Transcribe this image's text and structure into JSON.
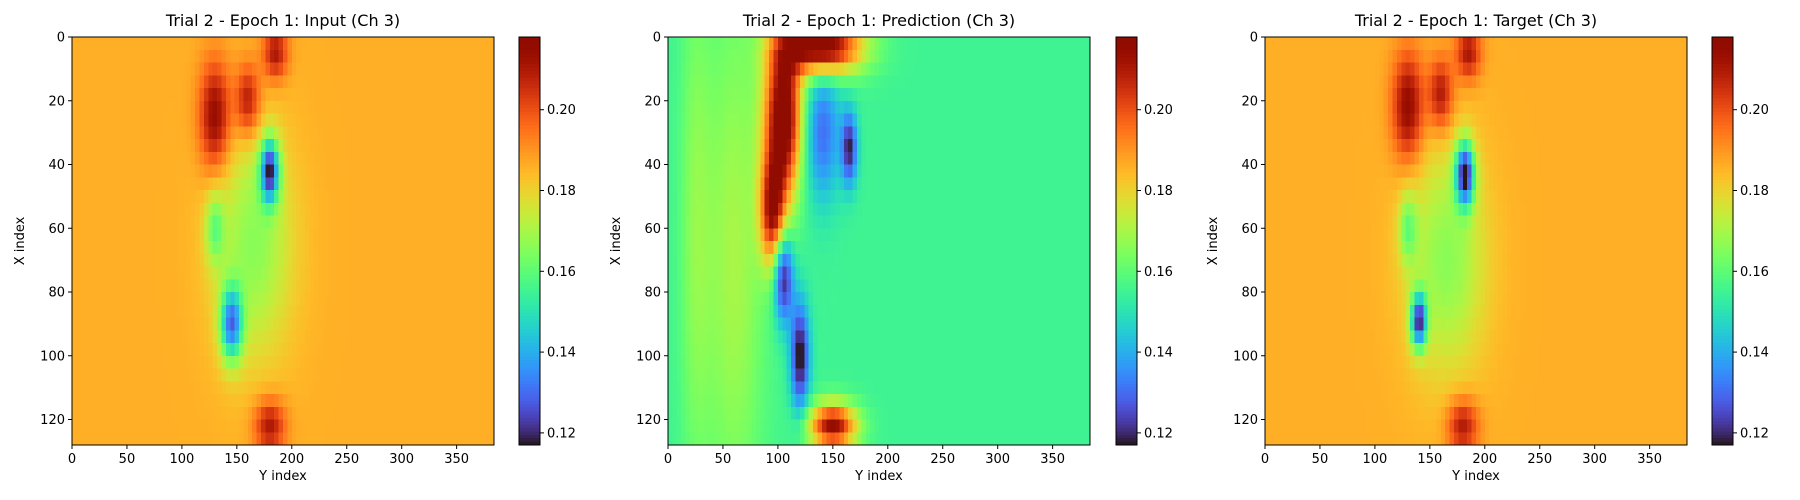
{
  "chart_data": [
    {
      "type": "heatmap",
      "title": "Trial 2 - Epoch 1: Input (Ch 3)",
      "xlabel": "Y index",
      "ylabel": "X index",
      "xlim": [
        0,
        384
      ],
      "ylim": [
        128,
        0
      ],
      "xticks": [
        "0",
        "50",
        "100",
        "150",
        "200",
        "250",
        "300",
        "350"
      ],
      "yticks": [
        "0",
        "20",
        "40",
        "60",
        "80",
        "100",
        "120"
      ],
      "colorbar": {
        "range": [
          0.117,
          0.218
        ],
        "ticks": [
          "0.12",
          "0.14",
          "0.16",
          "0.18",
          "0.20"
        ],
        "colormap": "turbo"
      },
      "field": {
        "background": 0.186,
        "features": [
          {
            "x": 130,
            "y": 25,
            "sx": 10,
            "sy": 12,
            "amp": 0.03
          },
          {
            "x": 160,
            "y": 20,
            "sx": 8,
            "sy": 8,
            "amp": 0.025
          },
          {
            "x": 185,
            "y": 5,
            "sx": 8,
            "sy": 6,
            "amp": 0.025
          },
          {
            "x": 180,
            "y": 122,
            "sx": 10,
            "sy": 6,
            "amp": 0.025
          },
          {
            "x": 180,
            "y": 42,
            "sx": 6,
            "sy": 7,
            "amp": -0.06
          },
          {
            "x": 145,
            "y": 90,
            "sx": 7,
            "sy": 8,
            "amp": -0.05
          },
          {
            "x": 165,
            "y": 65,
            "sx": 25,
            "sy": 25,
            "amp": -0.02
          },
          {
            "x": 130,
            "y": 60,
            "sx": 6,
            "sy": 8,
            "amp": -0.02
          }
        ]
      }
    },
    {
      "type": "heatmap",
      "title": "Trial 2 - Epoch 1: Prediction (Ch 3)",
      "xlabel": "Y index",
      "ylabel": "X index",
      "xlim": [
        0,
        384
      ],
      "ylim": [
        128,
        0
      ],
      "xticks": [
        "0",
        "50",
        "100",
        "150",
        "200",
        "250",
        "300",
        "350"
      ],
      "yticks": [
        "0",
        "20",
        "40",
        "60",
        "80",
        "100",
        "120"
      ],
      "colorbar": {
        "range": [
          0.117,
          0.218
        ],
        "ticks": [
          "0.12",
          "0.14",
          "0.16",
          "0.18",
          "0.20"
        ],
        "colormap": "turbo"
      },
      "field": {
        "background": 0.155,
        "features": [
          {
            "x": 105,
            "y": 25,
            "sx": 12,
            "sy": 18,
            "amp": 0.07
          },
          {
            "x": 140,
            "y": 3,
            "sx": 25,
            "sy": 6,
            "amp": 0.07
          },
          {
            "x": 150,
            "y": 122,
            "sx": 15,
            "sy": 5,
            "amp": 0.06
          },
          {
            "x": 95,
            "y": 55,
            "sx": 8,
            "sy": 12,
            "amp": 0.05
          },
          {
            "x": 105,
            "y": 75,
            "sx": 6,
            "sy": 10,
            "amp": -0.04
          },
          {
            "x": 120,
            "y": 100,
            "sx": 6,
            "sy": 12,
            "amp": -0.04
          },
          {
            "x": 140,
            "y": 30,
            "sx": 12,
            "sy": 15,
            "amp": -0.025
          },
          {
            "x": 165,
            "y": 35,
            "sx": 5,
            "sy": 8,
            "amp": -0.035
          },
          {
            "x": 60,
            "y": 70,
            "sx": 20,
            "sy": 60,
            "amp": 0.015
          },
          {
            "x": 25,
            "y": 60,
            "sx": 10,
            "sy": 60,
            "amp": 0.01
          }
        ]
      }
    },
    {
      "type": "heatmap",
      "title": "Trial 2 - Epoch 1: Target (Ch 3)",
      "xlabel": "Y index",
      "ylabel": "X index",
      "xlim": [
        0,
        384
      ],
      "ylim": [
        128,
        0
      ],
      "xticks": [
        "0",
        "50",
        "100",
        "150",
        "200",
        "250",
        "300",
        "350"
      ],
      "yticks": [
        "0",
        "20",
        "40",
        "60",
        "80",
        "100",
        "120"
      ],
      "colorbar": {
        "range": [
          0.117,
          0.218
        ],
        "ticks": [
          "0.12",
          "0.14",
          "0.16",
          "0.18",
          "0.20"
        ],
        "colormap": "turbo"
      },
      "field": {
        "background": 0.186,
        "features": [
          {
            "x": 130,
            "y": 22,
            "sx": 10,
            "sy": 12,
            "amp": 0.03
          },
          {
            "x": 160,
            "y": 18,
            "sx": 8,
            "sy": 8,
            "amp": 0.025
          },
          {
            "x": 185,
            "y": 5,
            "sx": 8,
            "sy": 6,
            "amp": 0.025
          },
          {
            "x": 180,
            "y": 122,
            "sx": 10,
            "sy": 6,
            "amp": 0.025
          },
          {
            "x": 182,
            "y": 43,
            "sx": 6,
            "sy": 7,
            "amp": -0.065
          },
          {
            "x": 140,
            "y": 89,
            "sx": 5,
            "sy": 6,
            "amp": -0.06
          },
          {
            "x": 165,
            "y": 70,
            "sx": 25,
            "sy": 25,
            "amp": -0.02
          },
          {
            "x": 130,
            "y": 60,
            "sx": 6,
            "sy": 8,
            "amp": -0.02
          }
        ]
      }
    }
  ]
}
